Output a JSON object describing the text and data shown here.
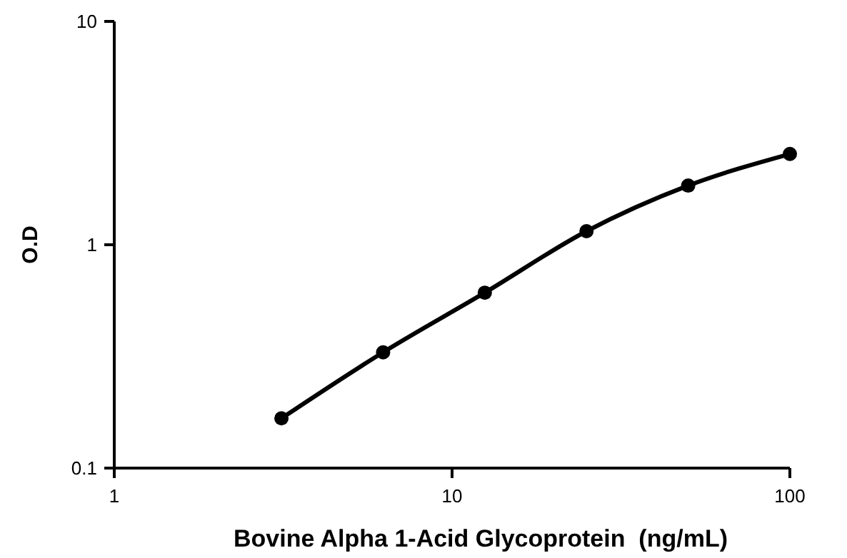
{
  "chart_data": {
    "type": "line",
    "xlabel": "Bovine Alpha 1-Acid Glycoprotein  (ng/mL)",
    "ylabel": "O.D",
    "log": "xy",
    "x": [
      3.125,
      6.25,
      12.5,
      25,
      50,
      100
    ],
    "series": [
      {
        "color": "#000000",
        "values": [
          0.167,
          0.33,
          0.61,
          1.15,
          1.84,
          2.55
        ]
      }
    ],
    "xlim": [
      1,
      100
    ],
    "xticks": [
      1,
      10,
      100
    ],
    "ylim": [
      0.1,
      10
    ],
    "yticks": [
      0.1,
      1,
      10
    ],
    "marker": "circle",
    "line_style": "solid"
  }
}
